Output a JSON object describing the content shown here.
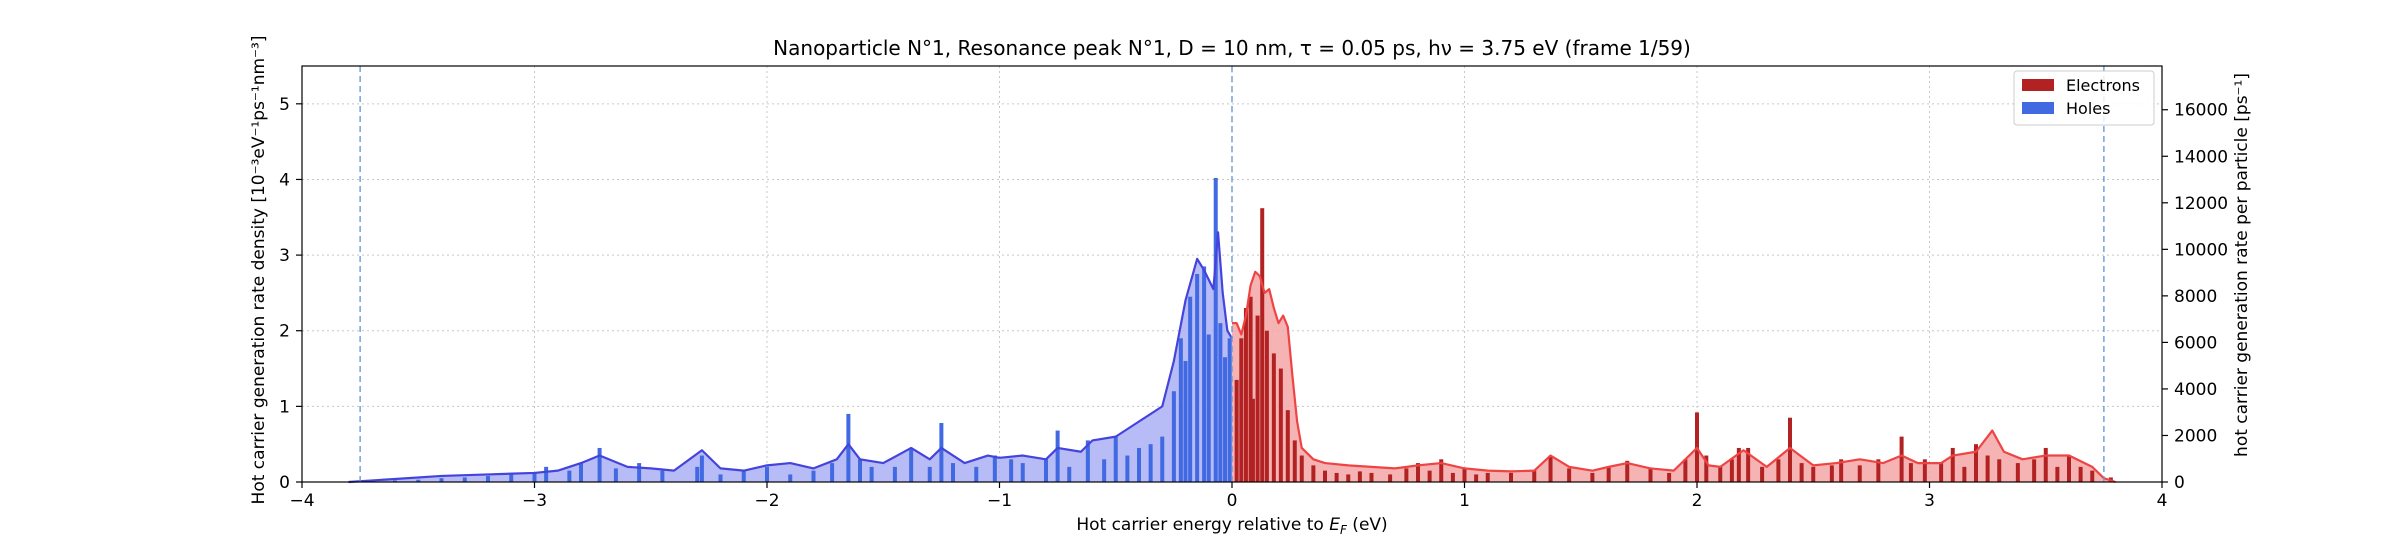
{
  "chart_data": {
    "type": "bar",
    "title": "Nanoparticle N°1, Resonance peak N°1, D = 10 nm, τ = 0.05 ps, hν = 3.75 eV   (frame 1/59)",
    "xlabel": "Hot carrier energy relative to E_F (eV)",
    "xlabel_main": "Hot carrier energy relative to ",
    "xlabel_var": "E",
    "xlabel_sub": "F",
    "xlabel_unit": " (eV)",
    "ylabel": "Hot carrier generation rate density [10⁻³eV⁻¹ps⁻¹nm⁻³]",
    "ylabel_right": "hot carrier generation rate per particle [ps⁻¹]",
    "xlim": [
      -4,
      4
    ],
    "ylim": [
      0,
      5.5
    ],
    "ylim_right": [
      0,
      17880
    ],
    "xticks": [
      -4,
      -3,
      -2,
      -1,
      0,
      1,
      2,
      3,
      4
    ],
    "xtick_labels": [
      "−4",
      "−3",
      "−2",
      "−1",
      "0",
      "1",
      "2",
      "3",
      "4"
    ],
    "yticks": [
      0,
      1,
      2,
      3,
      4,
      5
    ],
    "ytick_labels": [
      "0",
      "1",
      "2",
      "3",
      "4",
      "5"
    ],
    "yticks_right": [
      0,
      2000,
      4000,
      6000,
      8000,
      10000,
      12000,
      14000,
      16000
    ],
    "ytick_labels_right": [
      "0",
      "2000",
      "4000",
      "6000",
      "8000",
      "10000",
      "12000",
      "14000",
      "16000"
    ],
    "grid": true,
    "legend_position": "top-right",
    "vlines": [
      -3.75,
      0,
      3.75
    ],
    "series": [
      {
        "name": "Electrons",
        "color": "#b22222",
        "fill_color": "#f4a6a6",
        "line_color": "#ee4444",
        "bars": [
          [
            0.02,
            1.35
          ],
          [
            0.04,
            1.9
          ],
          [
            0.06,
            2.3
          ],
          [
            0.08,
            2.45
          ],
          [
            0.09,
            1.1
          ],
          [
            0.11,
            2.2
          ],
          [
            0.13,
            3.62
          ],
          [
            0.15,
            2.0
          ],
          [
            0.18,
            1.7
          ],
          [
            0.21,
            1.5
          ],
          [
            0.24,
            0.95
          ],
          [
            0.27,
            0.55
          ],
          [
            0.3,
            0.35
          ],
          [
            0.35,
            0.22
          ],
          [
            0.4,
            0.15
          ],
          [
            0.45,
            0.12
          ],
          [
            0.5,
            0.1
          ],
          [
            0.55,
            0.14
          ],
          [
            0.6,
            0.12
          ],
          [
            0.68,
            0.1
          ],
          [
            0.75,
            0.18
          ],
          [
            0.8,
            0.25
          ],
          [
            0.85,
            0.15
          ],
          [
            0.9,
            0.3
          ],
          [
            0.95,
            0.12
          ],
          [
            1.0,
            0.18
          ],
          [
            1.05,
            0.1
          ],
          [
            1.1,
            0.12
          ],
          [
            1.2,
            0.12
          ],
          [
            1.3,
            0.15
          ],
          [
            1.37,
            0.35
          ],
          [
            1.45,
            0.18
          ],
          [
            1.55,
            0.12
          ],
          [
            1.62,
            0.2
          ],
          [
            1.7,
            0.28
          ],
          [
            1.8,
            0.18
          ],
          [
            1.88,
            0.12
          ],
          [
            1.95,
            0.3
          ],
          [
            2.0,
            0.92
          ],
          [
            2.04,
            0.35
          ],
          [
            2.1,
            0.2
          ],
          [
            2.15,
            0.3
          ],
          [
            2.18,
            0.45
          ],
          [
            2.22,
            0.45
          ],
          [
            2.28,
            0.2
          ],
          [
            2.35,
            0.3
          ],
          [
            2.4,
            0.85
          ],
          [
            2.45,
            0.25
          ],
          [
            2.5,
            0.2
          ],
          [
            2.58,
            0.22
          ],
          [
            2.62,
            0.3
          ],
          [
            2.7,
            0.22
          ],
          [
            2.78,
            0.3
          ],
          [
            2.88,
            0.6
          ],
          [
            2.92,
            0.25
          ],
          [
            2.98,
            0.3
          ],
          [
            3.05,
            0.25
          ],
          [
            3.1,
            0.45
          ],
          [
            3.15,
            0.2
          ],
          [
            3.2,
            0.5
          ],
          [
            3.25,
            0.35
          ],
          [
            3.3,
            0.3
          ],
          [
            3.38,
            0.25
          ],
          [
            3.45,
            0.3
          ],
          [
            3.5,
            0.45
          ],
          [
            3.55,
            0.2
          ],
          [
            3.6,
            0.35
          ],
          [
            3.65,
            0.2
          ],
          [
            3.7,
            0.15
          ],
          [
            3.78,
            0.06
          ]
        ],
        "envelope": [
          [
            0.0,
            2.1
          ],
          [
            0.02,
            2.1
          ],
          [
            0.04,
            1.95
          ],
          [
            0.06,
            2.2
          ],
          [
            0.08,
            2.6
          ],
          [
            0.1,
            2.78
          ],
          [
            0.12,
            2.72
          ],
          [
            0.14,
            2.5
          ],
          [
            0.16,
            2.55
          ],
          [
            0.18,
            2.3
          ],
          [
            0.2,
            2.1
          ],
          [
            0.22,
            2.2
          ],
          [
            0.24,
            2.05
          ],
          [
            0.26,
            1.4
          ],
          [
            0.28,
            0.8
          ],
          [
            0.3,
            0.45
          ],
          [
            0.35,
            0.3
          ],
          [
            0.4,
            0.25
          ],
          [
            0.5,
            0.22
          ],
          [
            0.6,
            0.2
          ],
          [
            0.7,
            0.18
          ],
          [
            0.8,
            0.22
          ],
          [
            0.9,
            0.25
          ],
          [
            1.0,
            0.18
          ],
          [
            1.1,
            0.15
          ],
          [
            1.2,
            0.14
          ],
          [
            1.3,
            0.15
          ],
          [
            1.37,
            0.35
          ],
          [
            1.45,
            0.2
          ],
          [
            1.55,
            0.15
          ],
          [
            1.62,
            0.2
          ],
          [
            1.7,
            0.25
          ],
          [
            1.8,
            0.18
          ],
          [
            1.9,
            0.15
          ],
          [
            2.0,
            0.45
          ],
          [
            2.05,
            0.22
          ],
          [
            2.1,
            0.2
          ],
          [
            2.2,
            0.42
          ],
          [
            2.3,
            0.2
          ],
          [
            2.4,
            0.45
          ],
          [
            2.5,
            0.22
          ],
          [
            2.6,
            0.25
          ],
          [
            2.7,
            0.3
          ],
          [
            2.8,
            0.25
          ],
          [
            2.88,
            0.35
          ],
          [
            2.95,
            0.25
          ],
          [
            3.05,
            0.25
          ],
          [
            3.1,
            0.35
          ],
          [
            3.2,
            0.4
          ],
          [
            3.27,
            0.68
          ],
          [
            3.32,
            0.4
          ],
          [
            3.4,
            0.3
          ],
          [
            3.5,
            0.35
          ],
          [
            3.6,
            0.35
          ],
          [
            3.7,
            0.2
          ],
          [
            3.75,
            0.05
          ],
          [
            3.8,
            0.0
          ]
        ]
      },
      {
        "name": "Holes",
        "color": "#4169e1",
        "fill_color": "#aab0f4",
        "line_color": "#4444dd",
        "bars": [
          [
            -3.6,
            0.02
          ],
          [
            -3.5,
            0.03
          ],
          [
            -3.4,
            0.05
          ],
          [
            -3.3,
            0.06
          ],
          [
            -3.2,
            0.08
          ],
          [
            -3.1,
            0.1
          ],
          [
            -3.0,
            0.12
          ],
          [
            -2.95,
            0.2
          ],
          [
            -2.85,
            0.15
          ],
          [
            -2.8,
            0.25
          ],
          [
            -2.72,
            0.45
          ],
          [
            -2.65,
            0.18
          ],
          [
            -2.55,
            0.25
          ],
          [
            -2.45,
            0.15
          ],
          [
            -2.3,
            0.2
          ],
          [
            -2.28,
            0.35
          ],
          [
            -2.2,
            0.1
          ],
          [
            -2.1,
            0.15
          ],
          [
            -2.0,
            0.2
          ],
          [
            -1.9,
            0.1
          ],
          [
            -1.8,
            0.15
          ],
          [
            -1.72,
            0.25
          ],
          [
            -1.65,
            0.9
          ],
          [
            -1.6,
            0.3
          ],
          [
            -1.55,
            0.2
          ],
          [
            -1.45,
            0.2
          ],
          [
            -1.38,
            0.45
          ],
          [
            -1.3,
            0.2
          ],
          [
            -1.25,
            0.78
          ],
          [
            -1.2,
            0.25
          ],
          [
            -1.1,
            0.2
          ],
          [
            -1.02,
            0.35
          ],
          [
            -0.95,
            0.3
          ],
          [
            -0.9,
            0.25
          ],
          [
            -0.8,
            0.3
          ],
          [
            -0.75,
            0.68
          ],
          [
            -0.7,
            0.2
          ],
          [
            -0.62,
            0.55
          ],
          [
            -0.55,
            0.3
          ],
          [
            -0.5,
            0.6
          ],
          [
            -0.45,
            0.35
          ],
          [
            -0.4,
            0.45
          ],
          [
            -0.35,
            0.5
          ],
          [
            -0.3,
            0.6
          ],
          [
            -0.25,
            1.2
          ],
          [
            -0.22,
            1.9
          ],
          [
            -0.2,
            1.6
          ],
          [
            -0.18,
            2.45
          ],
          [
            -0.15,
            2.75
          ],
          [
            -0.12,
            2.85
          ],
          [
            -0.1,
            1.95
          ],
          [
            -0.07,
            4.02
          ],
          [
            -0.05,
            2.1
          ],
          [
            -0.03,
            1.65
          ],
          [
            -0.01,
            1.9
          ]
        ],
        "envelope": [
          [
            -3.8,
            0.0
          ],
          [
            -3.6,
            0.04
          ],
          [
            -3.4,
            0.08
          ],
          [
            -3.2,
            0.1
          ],
          [
            -3.0,
            0.12
          ],
          [
            -2.9,
            0.15
          ],
          [
            -2.8,
            0.25
          ],
          [
            -2.72,
            0.35
          ],
          [
            -2.6,
            0.2
          ],
          [
            -2.5,
            0.18
          ],
          [
            -2.4,
            0.15
          ],
          [
            -2.28,
            0.42
          ],
          [
            -2.2,
            0.18
          ],
          [
            -2.1,
            0.15
          ],
          [
            -2.0,
            0.22
          ],
          [
            -1.9,
            0.25
          ],
          [
            -1.8,
            0.18
          ],
          [
            -1.7,
            0.3
          ],
          [
            -1.65,
            0.5
          ],
          [
            -1.6,
            0.3
          ],
          [
            -1.5,
            0.25
          ],
          [
            -1.38,
            0.45
          ],
          [
            -1.3,
            0.3
          ],
          [
            -1.25,
            0.45
          ],
          [
            -1.15,
            0.25
          ],
          [
            -1.05,
            0.35
          ],
          [
            -1.0,
            0.32
          ],
          [
            -0.9,
            0.35
          ],
          [
            -0.8,
            0.3
          ],
          [
            -0.75,
            0.45
          ],
          [
            -0.65,
            0.4
          ],
          [
            -0.6,
            0.55
          ],
          [
            -0.5,
            0.6
          ],
          [
            -0.4,
            0.8
          ],
          [
            -0.3,
            1.0
          ],
          [
            -0.25,
            1.6
          ],
          [
            -0.2,
            2.4
          ],
          [
            -0.15,
            2.95
          ],
          [
            -0.12,
            2.8
          ],
          [
            -0.08,
            2.55
          ],
          [
            -0.06,
            3.3
          ],
          [
            -0.04,
            2.5
          ],
          [
            -0.02,
            2.0
          ],
          [
            0.0,
            1.9
          ]
        ]
      }
    ]
  }
}
